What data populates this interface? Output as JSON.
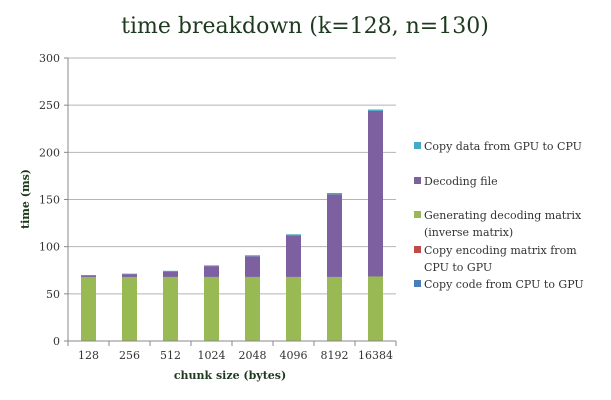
{
  "chart_data": {
    "type": "bar",
    "stacked": true,
    "title": "time breakdown (k=128, n=130)",
    "xlabel": "chunk size (bytes)",
    "ylabel": "time (ms)",
    "categories": [
      "128",
      "256",
      "512",
      "1024",
      "2048",
      "4096",
      "8192",
      "16384"
    ],
    "ylim": [
      0,
      300
    ],
    "yticks": [
      0,
      50,
      100,
      150,
      200,
      250,
      300
    ],
    "grid": true,
    "legend_position": "right",
    "series": [
      {
        "name": "Copy code from CPU to GPU",
        "color": "#4a7ebb",
        "values": [
          0.2,
          0.2,
          0.2,
          0.2,
          0.2,
          0.2,
          0.2,
          0.2
        ]
      },
      {
        "name": "Copy encoding matrix from CPU to GPU",
        "color": "#be4b48",
        "values": [
          0.2,
          0.2,
          0.2,
          0.2,
          0.2,
          0.2,
          0.2,
          0.2
        ]
      },
      {
        "name": "Generating decoding matrix (inverse matrix)",
        "color": "#98b954",
        "values": [
          67.5,
          67.5,
          67.5,
          67.5,
          67.5,
          67.5,
          67.5,
          68
        ]
      },
      {
        "name": "Decoding file",
        "color": "#7d60a0",
        "values": [
          1.5,
          3,
          6,
          11.5,
          22,
          44,
          87.5,
          175.5
        ]
      },
      {
        "name": "Copy data from GPU to CPU",
        "color": "#46aac5",
        "values": [
          0.5,
          0.5,
          0.5,
          0.8,
          1,
          1.2,
          1.5,
          1.5
        ]
      }
    ]
  }
}
